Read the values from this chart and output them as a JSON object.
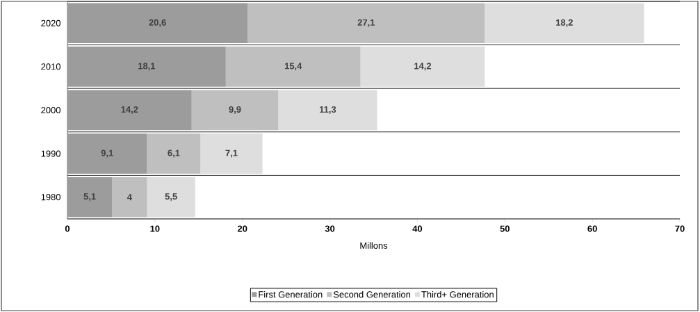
{
  "chart_data": {
    "type": "bar",
    "orientation": "horizontal",
    "stacked": true,
    "xlabel": "Millons",
    "categories": [
      "2020",
      "2010",
      "2000",
      "1990",
      "1980"
    ],
    "series": [
      {
        "name": "First Generation",
        "color": "#9c9c9c",
        "values": [
          20.6,
          18.1,
          14.2,
          9.1,
          5.1
        ],
        "value_labels": [
          "20,6",
          "18,1",
          "14,2",
          "9,1",
          "5,1"
        ]
      },
      {
        "name": "Second Generation",
        "color": "#bfbfbf",
        "values": [
          27.1,
          15.4,
          9.9,
          6.1,
          4
        ],
        "value_labels": [
          "27,1",
          "15,4",
          "9,9",
          "6,1",
          "4"
        ]
      },
      {
        "name": "Third+ Generation",
        "color": "#dedede",
        "values": [
          18.2,
          14.2,
          11.3,
          7.1,
          5.5
        ],
        "value_labels": [
          "18,2",
          "14,2",
          "11,3",
          "7,1",
          "5,5"
        ]
      }
    ],
    "xlim": [
      0,
      70
    ],
    "xticks": [
      0,
      10,
      20,
      30,
      40,
      50,
      60,
      70
    ],
    "grid": "y",
    "legend": "bottom"
  }
}
